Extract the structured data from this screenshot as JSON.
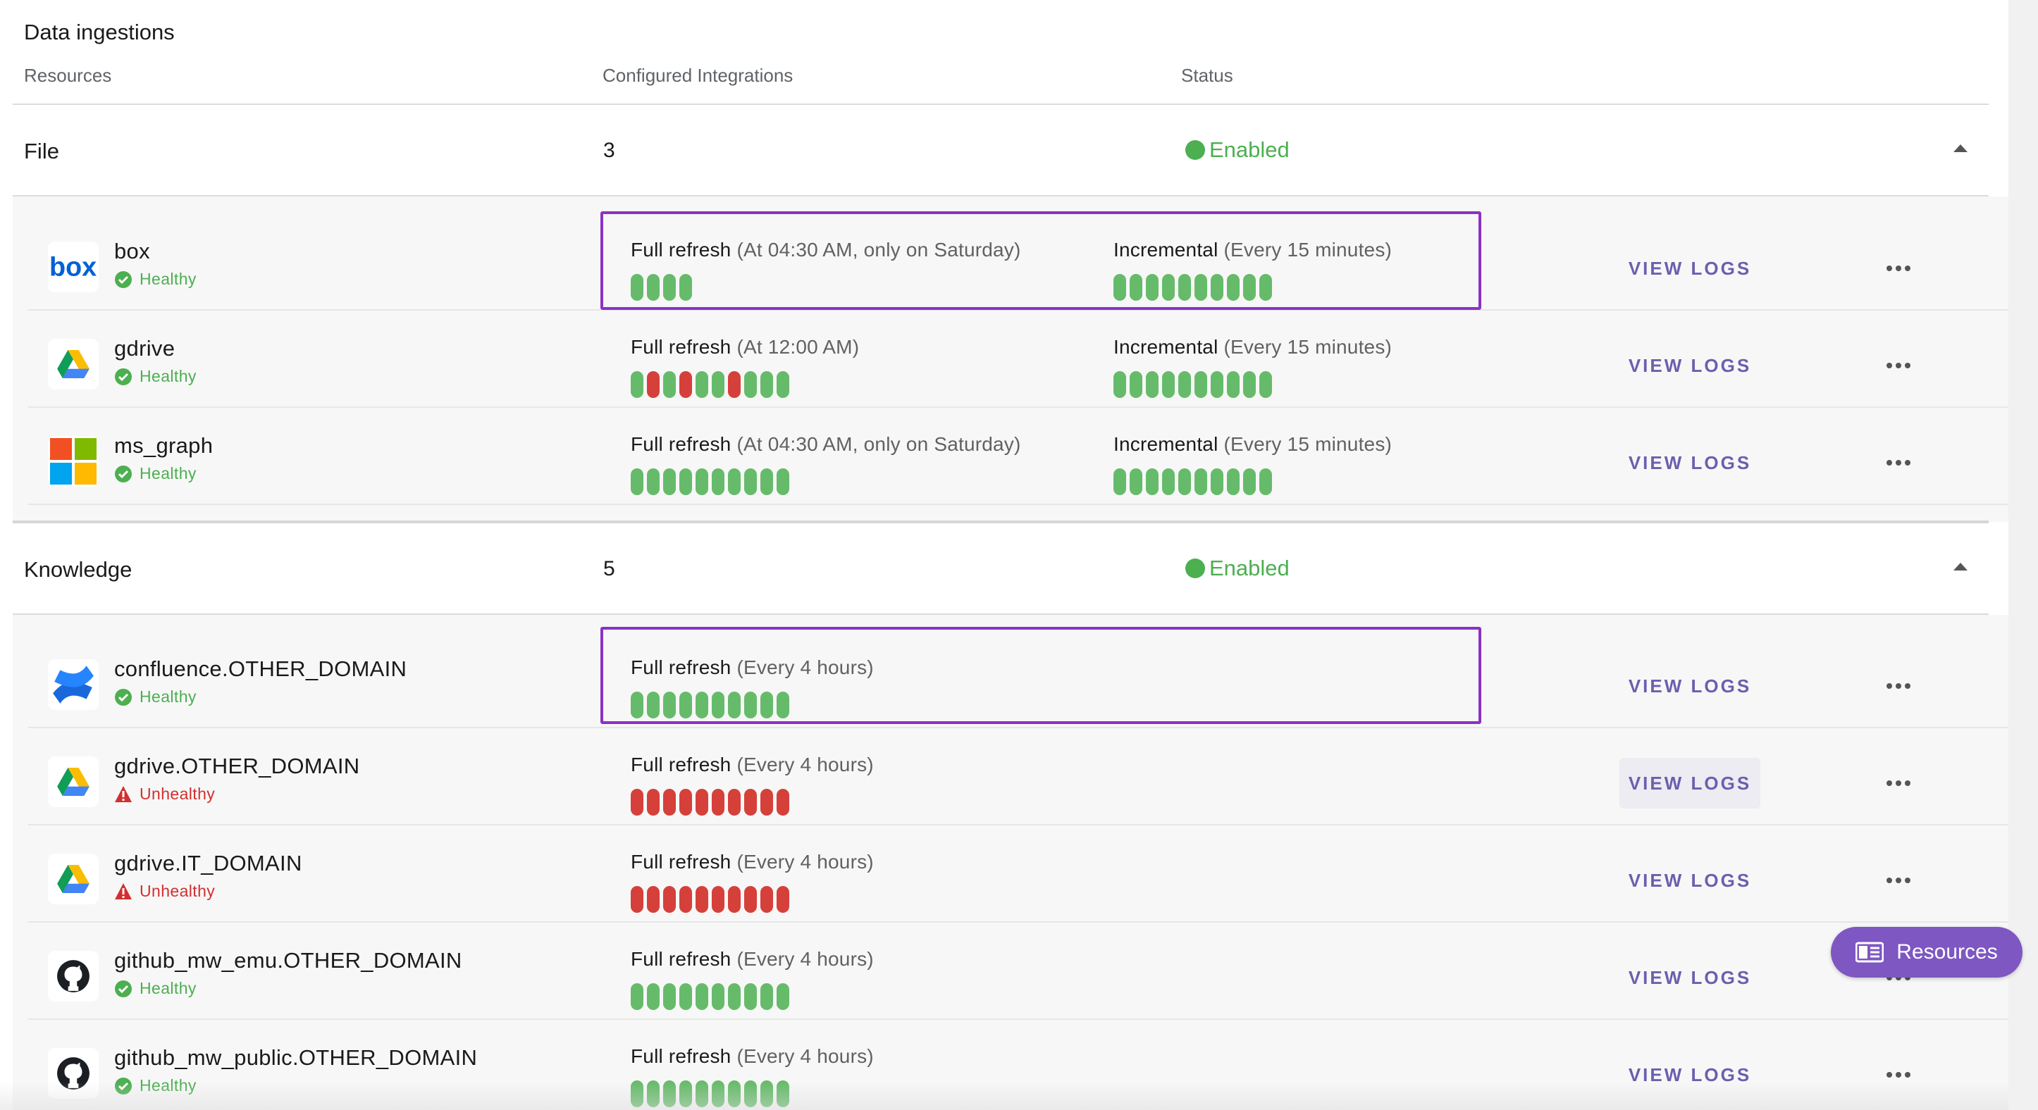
{
  "title": "Data ingestions",
  "columns": {
    "resources": "Resources",
    "integrations": "Configured Integrations",
    "status": "Status"
  },
  "groups": {
    "file": {
      "name": "File",
      "count": "3",
      "status": "Enabled",
      "resources": [
        {
          "name": "box",
          "logo": "box-logo",
          "health": "Healthy",
          "full_label": "Full refresh",
          "full_freq": "(At 04:30 AM, only on Saturday)",
          "full_runs": [
            "ok",
            "ok",
            "ok",
            "ok"
          ],
          "inc_label": "Incremental",
          "inc_freq": "(Every 15 minutes)",
          "inc_runs": [
            "ok",
            "ok",
            "ok",
            "ok",
            "ok",
            "ok",
            "ok",
            "ok",
            "ok",
            "ok"
          ],
          "view_logs": "VIEW LOGS"
        },
        {
          "name": "gdrive",
          "logo": "google-drive-logo",
          "health": "Healthy",
          "full_label": "Full refresh",
          "full_freq": "(At 12:00 AM)",
          "full_runs": [
            "ok",
            "fail",
            "ok",
            "fail",
            "ok",
            "ok",
            "fail",
            "ok",
            "ok",
            "ok"
          ],
          "inc_label": "Incremental",
          "inc_freq": "(Every 15 minutes)",
          "inc_runs": [
            "ok",
            "ok",
            "ok",
            "ok",
            "ok",
            "ok",
            "ok",
            "ok",
            "ok",
            "ok"
          ],
          "view_logs": "VIEW LOGS"
        },
        {
          "name": "ms_graph",
          "logo": "microsoft-logo",
          "health": "Healthy",
          "full_label": "Full refresh",
          "full_freq": "(At 04:30 AM, only on Saturday)",
          "full_runs": [
            "ok",
            "ok",
            "ok",
            "ok",
            "ok",
            "ok",
            "ok",
            "ok",
            "ok",
            "ok"
          ],
          "inc_label": "Incremental",
          "inc_freq": "(Every 15 minutes)",
          "inc_runs": [
            "ok",
            "ok",
            "ok",
            "ok",
            "ok",
            "ok",
            "ok",
            "ok",
            "ok",
            "ok"
          ],
          "view_logs": "VIEW LOGS"
        }
      ]
    },
    "knowledge": {
      "name": "Knowledge",
      "count": "5",
      "status": "Enabled",
      "resources": [
        {
          "name": "confluence.OTHER_DOMAIN",
          "logo": "confluence-logo",
          "health": "Healthy",
          "full_label": "Full refresh",
          "full_freq": "(Every 4 hours)",
          "full_runs": [
            "ok",
            "ok",
            "ok",
            "ok",
            "ok",
            "ok",
            "ok",
            "ok",
            "ok",
            "ok"
          ],
          "view_logs": "VIEW LOGS"
        },
        {
          "name": "gdrive.OTHER_DOMAIN",
          "logo": "google-drive-logo",
          "health": "Unhealthy",
          "full_label": "Full refresh",
          "full_freq": "(Every 4 hours)",
          "full_runs": [
            "fail",
            "fail",
            "fail",
            "fail",
            "fail",
            "fail",
            "fail",
            "fail",
            "fail",
            "fail"
          ],
          "view_logs": "VIEW LOGS"
        },
        {
          "name": "gdrive.IT_DOMAIN",
          "logo": "google-drive-logo",
          "health": "Unhealthy",
          "full_label": "Full refresh",
          "full_freq": "(Every 4 hours)",
          "full_runs": [
            "fail",
            "fail",
            "fail",
            "fail",
            "fail",
            "fail",
            "fail",
            "fail",
            "fail",
            "fail"
          ],
          "view_logs": "VIEW LOGS"
        },
        {
          "name": "github_mw_emu.OTHER_DOMAIN",
          "logo": "github-logo",
          "health": "Healthy",
          "full_label": "Full refresh",
          "full_freq": "(Every 4 hours)",
          "full_runs": [
            "ok",
            "ok",
            "ok",
            "ok",
            "ok",
            "ok",
            "ok",
            "ok",
            "ok",
            "ok"
          ],
          "view_logs": "VIEW LOGS"
        },
        {
          "name": "github_mw_public.OTHER_DOMAIN",
          "logo": "github-logo",
          "health": "Healthy",
          "full_label": "Full refresh",
          "full_freq": "(Every 4 hours)",
          "full_runs": [
            "ok",
            "ok",
            "ok",
            "ok",
            "ok",
            "ok",
            "ok",
            "ok",
            "ok",
            "ok"
          ],
          "view_logs": "VIEW LOGS"
        }
      ]
    }
  },
  "fab": {
    "label": "Resources",
    "icon": "book-icon"
  },
  "colors": {
    "healthy": "#4caf50",
    "unhealthy": "#d32f2f",
    "accent": "#7e57c2",
    "highlight": "#8b32c4"
  }
}
